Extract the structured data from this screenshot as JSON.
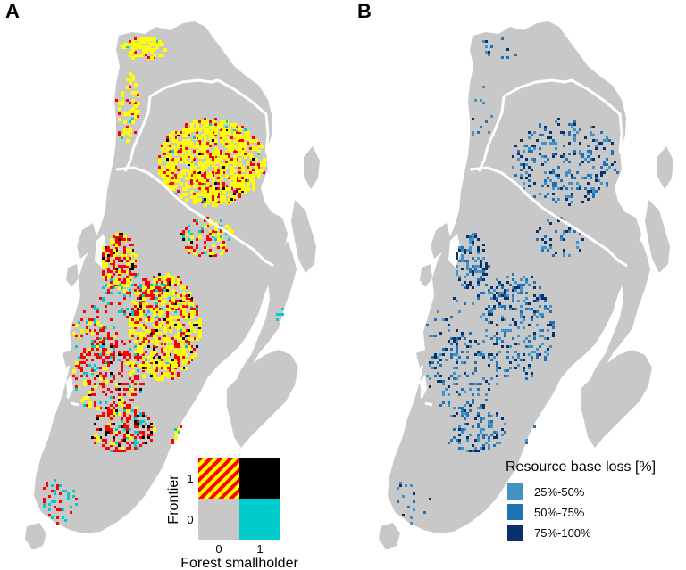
{
  "panels": [
    {
      "letter": "A"
    },
    {
      "letter": "B"
    }
  ],
  "legend_a": {
    "y_axis_title": "Frontier",
    "x_axis_title": "Forest smallholder",
    "x_ticks": [
      "0",
      "1"
    ],
    "y_ticks": [
      "1",
      "0"
    ],
    "cells": [
      {
        "frontier": 1,
        "smallholder": 0,
        "fill": "hatched",
        "colors": [
          "#ff0000",
          "#ffff00"
        ]
      },
      {
        "frontier": 1,
        "smallholder": 1,
        "fill": "#000000"
      },
      {
        "frontier": 0,
        "smallholder": 0,
        "fill": "#c8c8c8"
      },
      {
        "frontier": 0,
        "smallholder": 1,
        "fill": "#00cccc"
      }
    ]
  },
  "legend_b": {
    "title": "Resource base loss [%]",
    "items": [
      {
        "label": "25%-50%",
        "color": "#4292c6"
      },
      {
        "label": "50%-75%",
        "color": "#2171b5"
      },
      {
        "label": "75%-100%",
        "color": "#08306b"
      }
    ]
  },
  "colors": {
    "land": "#c8c8c8",
    "boundary": "#ffffff",
    "yellow": "#ffff00",
    "red": "#ff0000",
    "black": "#000000",
    "cyan": "#00cccc"
  }
}
